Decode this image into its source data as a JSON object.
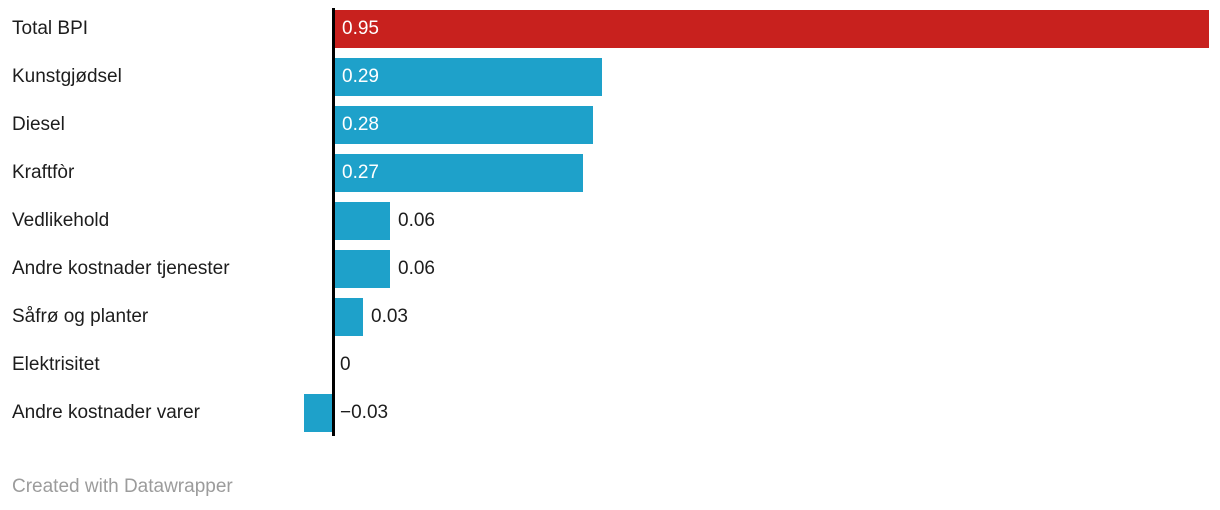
{
  "chart_data": {
    "type": "bar",
    "orientation": "horizontal",
    "title": "",
    "categories": [
      "Total BPI",
      "Kunstgjødsel",
      "Diesel",
      "Kraftfòr",
      "Vedlikehold",
      "Andre kostnader tjenester",
      "Såfrø og planter",
      "Elektrisitet",
      "Andre kostnader varer"
    ],
    "values": [
      0.95,
      0.29,
      0.28,
      0.27,
      0.06,
      0.06,
      0.03,
      0,
      -0.03
    ],
    "value_labels": [
      "0.95",
      "0.29",
      "0.28",
      "0.27",
      "0.06",
      "0.06",
      "0.03",
      "0",
      "−0.03"
    ],
    "bar_colors": [
      "#c8211e",
      "#1ea1ca",
      "#1ea1ca",
      "#1ea1ca",
      "#1ea1ca",
      "#1ea1ca",
      "#1ea1ca",
      "#1ea1ca",
      "#1ea1ca"
    ],
    "value_label_positions": [
      "inside",
      "inside",
      "inside",
      "inside",
      "outside",
      "outside",
      "outside",
      "outside",
      "outside"
    ],
    "xlim": [
      -0.03,
      0.95
    ],
    "baseline": 0,
    "grid": false,
    "legend": false
  },
  "colors": {
    "highlight_red": "#c8211e",
    "bar_blue": "#1ea1ca",
    "category_text": "#1d1d1d",
    "value_inside_text": "#ffffff",
    "value_outside_text": "#1d1d1d",
    "axis_line": "#000000",
    "footer_text": "#9c9c9c",
    "background": "#ffffff"
  },
  "footer": {
    "attribution": "Created with Datawrapper"
  }
}
